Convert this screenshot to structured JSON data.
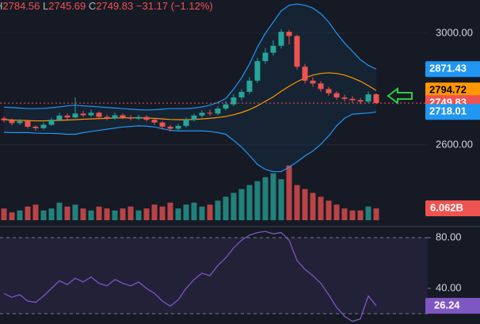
{
  "chart_data": {
    "type": "candlestick",
    "header": {
      "high_label": "H",
      "high": "2784.56",
      "low_label": "L",
      "low": "2745.69",
      "close_label": "C",
      "close": "2749.83",
      "change": "−31.17 (−1.12%)"
    },
    "up_color": "#26a69a",
    "down_color": "#ef5350",
    "ylim": [
      2330,
      3119
    ],
    "yticks": [
      {
        "value": 3000,
        "label": "3000.00"
      },
      {
        "value": 2600,
        "label": "2600.00"
      }
    ],
    "candles": {
      "open": [
        2695,
        2688,
        2678,
        2685,
        2665,
        2660,
        2672,
        2690,
        2705,
        2698,
        2712,
        2706,
        2715,
        2700,
        2695,
        2706,
        2698,
        2694,
        2700,
        2690,
        2680,
        2665,
        2658,
        2668,
        2690,
        2705,
        2715,
        2712,
        2730,
        2745,
        2770,
        2790,
        2830,
        2900,
        2930,
        2955,
        3005,
        2990,
        2880,
        2830,
        2820,
        2800,
        2785,
        2770,
        2765,
        2760,
        2755,
        2781
      ],
      "high": [
        2702,
        2694,
        2692,
        2690,
        2670,
        2680,
        2698,
        2715,
        2712,
        2770,
        2722,
        2726,
        2720,
        2708,
        2716,
        2712,
        2706,
        2708,
        2706,
        2696,
        2686,
        2672,
        2676,
        2698,
        2712,
        2724,
        2726,
        2738,
        2756,
        2782,
        2800,
        2842,
        2912,
        2945,
        2975,
        3015,
        3012,
        2995,
        2890,
        2842,
        2828,
        2808,
        2792,
        2780,
        2774,
        2768,
        2792,
        2784.56
      ],
      "low": [
        2680,
        2670,
        2672,
        2658,
        2650,
        2655,
        2668,
        2685,
        2690,
        2694,
        2700,
        2700,
        2694,
        2688,
        2690,
        2692,
        2688,
        2688,
        2684,
        2672,
        2655,
        2648,
        2652,
        2662,
        2684,
        2698,
        2704,
        2706,
        2724,
        2738,
        2760,
        2782,
        2822,
        2890,
        2920,
        2945,
        2960,
        2870,
        2820,
        2808,
        2790,
        2776,
        2762,
        2756,
        2750,
        2746,
        2750,
        2745.69
      ],
      "close": [
        2688,
        2678,
        2685,
        2665,
        2660,
        2672,
        2690,
        2705,
        2698,
        2712,
        2706,
        2715,
        2700,
        2695,
        2706,
        2698,
        2694,
        2700,
        2690,
        2680,
        2665,
        2658,
        2668,
        2690,
        2705,
        2715,
        2712,
        2730,
        2745,
        2770,
        2790,
        2830,
        2900,
        2930,
        2955,
        3005,
        2990,
        2880,
        2830,
        2820,
        2800,
        2785,
        2770,
        2765,
        2760,
        2755,
        2781,
        2749.83
      ]
    },
    "bands": [
      {
        "color": "#2196f3",
        "values": [
          2735,
          2734,
          2732,
          2730,
          2730,
          2731,
          2733,
          2736,
          2740,
          2742,
          2740,
          2738,
          2736,
          2734,
          2732,
          2730,
          2728,
          2726,
          2725,
          2726,
          2728,
          2730,
          2730,
          2730,
          2732,
          2736,
          2742,
          2752,
          2766,
          2800,
          2840,
          2890,
          2950,
          3000,
          3040,
          3080,
          3100,
          3105,
          3100,
          3090,
          3070,
          3040,
          3000,
          2965,
          2935,
          2905,
          2885,
          2871.43
        ]
      },
      {
        "color": "#ff9800",
        "values": [
          2690,
          2689,
          2688,
          2687,
          2686,
          2686,
          2687,
          2688,
          2689,
          2690,
          2692,
          2693,
          2694,
          2695,
          2696,
          2697,
          2697,
          2697,
          2696,
          2695,
          2693,
          2691,
          2690,
          2690,
          2691,
          2693,
          2695,
          2698,
          2702,
          2708,
          2716,
          2726,
          2740,
          2756,
          2772,
          2792,
          2810,
          2826,
          2840,
          2850,
          2856,
          2858,
          2856,
          2850,
          2840,
          2828,
          2812,
          2794.72
        ]
      },
      {
        "color": "#2196f3",
        "values": [
          2645,
          2644,
          2644,
          2644,
          2642,
          2641,
          2641,
          2640,
          2638,
          2638,
          2644,
          2648,
          2652,
          2656,
          2660,
          2664,
          2666,
          2668,
          2667,
          2664,
          2658,
          2652,
          2650,
          2650,
          2650,
          2650,
          2648,
          2644,
          2638,
          2616,
          2592,
          2562,
          2530,
          2512,
          2504,
          2504,
          2520,
          2539,
          2560,
          2578,
          2602,
          2632,
          2668,
          2695,
          2710,
          2712,
          2714,
          2718.01
        ]
      }
    ],
    "volume": {
      "ylim": [
        0,
        30
      ],
      "values": [
        6,
        4,
        5,
        7,
        8,
        5,
        6,
        9,
        7,
        8,
        6,
        5,
        7,
        6,
        5,
        6,
        7,
        5,
        6,
        8,
        7,
        9,
        6,
        8,
        9,
        7,
        8,
        10,
        12,
        14,
        16,
        18,
        20,
        22,
        24,
        21,
        28,
        18,
        16,
        14,
        12,
        10,
        8,
        6,
        5,
        5,
        7,
        6.062
      ],
      "value_labels": [
        null,
        null,
        null,
        null,
        null,
        null,
        null,
        null,
        null,
        null,
        null,
        null,
        null,
        null,
        null,
        null,
        null,
        null,
        null,
        null,
        null,
        null,
        null,
        null,
        null,
        null,
        null,
        null,
        null,
        null,
        null,
        null,
        null,
        null,
        null,
        null,
        null,
        null,
        null,
        null,
        null,
        null,
        null,
        null,
        null,
        null,
        null,
        "6.062B"
      ]
    },
    "rsi": {
      "color": "#7e57c2",
      "ylim": [
        11.9,
        86.25
      ],
      "yticks": [
        {
          "value": 80,
          "label": "80.00"
        },
        {
          "value": 40,
          "label": "40.00"
        }
      ],
      "levels": [
        80,
        20
      ],
      "values": [
        36,
        33,
        35,
        30,
        29,
        34,
        40,
        46,
        43,
        48,
        45,
        49,
        44,
        42,
        47,
        44,
        42,
        45,
        40,
        36,
        30,
        26,
        31,
        40,
        47,
        52,
        50,
        58,
        64,
        72,
        78,
        82,
        84,
        85,
        83,
        84,
        78,
        62,
        55,
        50,
        44,
        35,
        25,
        18,
        14,
        16,
        34,
        26.24
      ]
    }
  }
}
